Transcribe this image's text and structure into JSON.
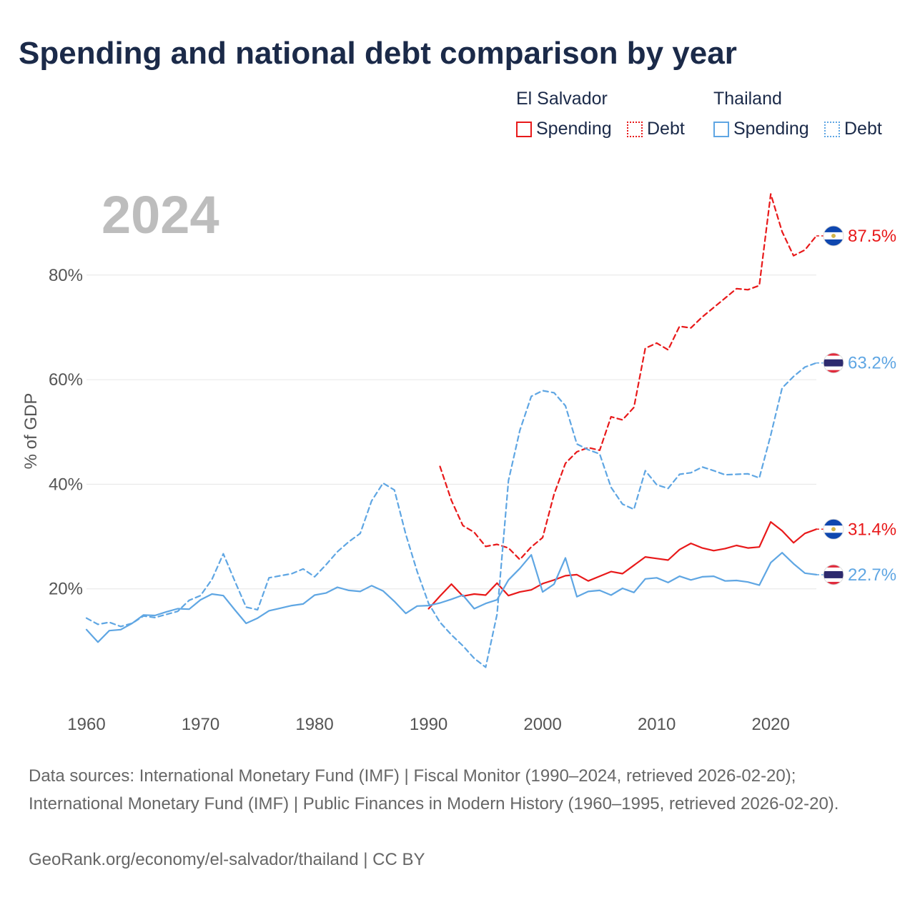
{
  "title": "Spending and national debt comparison by year",
  "year_label": "2024",
  "legend": {
    "el_salvador": {
      "country": "El Salvador",
      "spending": "Spending",
      "debt": "Debt",
      "color": "#e8191a"
    },
    "thailand": {
      "country": "Thailand",
      "spending": "Spending",
      "debt": "Debt",
      "color": "#5fa6e3"
    }
  },
  "footer": {
    "sources": "Data sources: International Monetary Fund (IMF) | Fiscal Monitor (1990–2024, retrieved 2026-02-20); International Monetary Fund (IMF) | Public Finances in Modern History (1960–1995, retrieved 2026-02-20).",
    "credit": "GeoRank.org/economy/el-salvador/thailand | CC BY"
  },
  "chart_data": {
    "type": "line",
    "title": "Spending and national debt comparison by year",
    "xlabel": "",
    "ylabel": "% of GDP",
    "xlim": [
      1960,
      2024
    ],
    "ylim": [
      0,
      100
    ],
    "x_ticks": [
      1960,
      1970,
      1980,
      1990,
      2000,
      2010,
      2020
    ],
    "x_tick_labels": [
      "1960",
      "1970",
      "1980",
      "1990",
      "2000",
      "2010",
      "2020"
    ],
    "y_ticks": [
      20,
      40,
      60,
      80
    ],
    "y_tick_labels": [
      "20%",
      "40%",
      "60%",
      "80%"
    ],
    "grid": true,
    "end_labels": {
      "el_salvador_debt": "87.5%",
      "thailand_debt": "63.2%",
      "el_salvador_spending": "31.4%",
      "thailand_spending": "22.7%"
    },
    "series": [
      {
        "name": "El Salvador Spending",
        "country": "el_salvador",
        "kind": "spending",
        "dashed": false,
        "color": "#e8191a",
        "x": [
          1990,
          1991,
          1992,
          1993,
          1994,
          1995,
          1996,
          1997,
          1998,
          1999,
          2000,
          2001,
          2002,
          2003,
          2004,
          2005,
          2006,
          2007,
          2008,
          2009,
          2010,
          2011,
          2012,
          2013,
          2014,
          2015,
          2016,
          2017,
          2018,
          2019,
          2020,
          2021,
          2022,
          2023,
          2024
        ],
        "values": [
          16.2,
          18.6,
          20.9,
          18.6,
          19.0,
          18.8,
          21.1,
          18.7,
          19.4,
          19.8,
          21.0,
          21.7,
          22.5,
          22.7,
          21.5,
          22.4,
          23.3,
          22.9,
          24.5,
          26.1,
          25.8,
          25.5,
          27.5,
          28.7,
          27.8,
          27.3,
          27.7,
          28.3,
          27.8,
          28.0,
          32.8,
          31.1,
          28.8,
          30.6,
          31.4
        ]
      },
      {
        "name": "El Salvador Debt",
        "country": "el_salvador",
        "kind": "debt",
        "dashed": true,
        "color": "#e8191a",
        "x": [
          1991,
          1992,
          1993,
          1994,
          1995,
          1996,
          1997,
          1998,
          1999,
          2000,
          2001,
          2002,
          2003,
          2004,
          2005,
          2006,
          2007,
          2008,
          2009,
          2010,
          2011,
          2012,
          2013,
          2014,
          2015,
          2016,
          2017,
          2018,
          2019,
          2020,
          2021,
          2022,
          2023,
          2024
        ],
        "values": [
          43.4,
          36.9,
          32.1,
          30.8,
          28.1,
          28.5,
          27.8,
          25.6,
          28.0,
          29.8,
          38.1,
          44.0,
          46.2,
          47.0,
          46.5,
          52.9,
          52.3,
          54.7,
          66.0,
          67.0,
          65.7,
          70.2,
          69.9,
          72.0,
          73.8,
          75.6,
          77.4,
          77.2,
          78.0,
          95.5,
          88.3,
          83.7,
          84.8,
          87.5
        ]
      },
      {
        "name": "Thailand Spending",
        "country": "thailand",
        "kind": "spending",
        "dashed": false,
        "color": "#5fa6e3",
        "x": [
          1960,
          1961,
          1962,
          1963,
          1964,
          1965,
          1966,
          1967,
          1968,
          1969,
          1970,
          1971,
          1972,
          1973,
          1974,
          1975,
          1976,
          1977,
          1978,
          1979,
          1980,
          1981,
          1982,
          1983,
          1984,
          1985,
          1986,
          1987,
          1988,
          1989,
          1990,
          1991,
          1992,
          1993,
          1994,
          1995,
          1996,
          1997,
          1998,
          1999,
          2000,
          2001,
          2002,
          2003,
          2004,
          2005,
          2006,
          2007,
          2008,
          2009,
          2010,
          2011,
          2012,
          2013,
          2014,
          2015,
          2016,
          2017,
          2018,
          2019,
          2020,
          2021,
          2022,
          2023,
          2024
        ],
        "values": [
          12.2,
          9.8,
          12.0,
          12.2,
          13.4,
          15.0,
          14.9,
          15.6,
          16.2,
          16.1,
          17.9,
          19.0,
          18.7,
          16.0,
          13.4,
          14.4,
          15.8,
          16.3,
          16.8,
          17.1,
          18.8,
          19.2,
          20.3,
          19.7,
          19.5,
          20.6,
          19.6,
          17.6,
          15.3,
          16.7,
          16.8,
          17.3,
          18.0,
          18.8,
          16.2,
          17.2,
          17.9,
          21.7,
          23.9,
          26.5,
          19.4,
          20.9,
          25.9,
          18.5,
          19.5,
          19.7,
          18.8,
          20.1,
          19.3,
          21.9,
          22.1,
          21.2,
          22.4,
          21.7,
          22.3,
          22.4,
          21.5,
          21.6,
          21.3,
          20.7,
          25.0,
          26.9,
          24.8,
          23.0,
          22.7
        ]
      },
      {
        "name": "Thailand Debt",
        "country": "thailand",
        "kind": "debt",
        "dashed": true,
        "color": "#5fa6e3",
        "x": [
          1960,
          1961,
          1962,
          1963,
          1964,
          1965,
          1966,
          1967,
          1968,
          1969,
          1970,
          1971,
          1972,
          1973,
          1974,
          1975,
          1976,
          1977,
          1978,
          1979,
          1980,
          1981,
          1982,
          1983,
          1984,
          1985,
          1986,
          1987,
          1988,
          1989,
          1990,
          1991,
          1992,
          1993,
          1994,
          1995,
          1996,
          1997,
          1998,
          1999,
          2000,
          2001,
          2002,
          2003,
          2004,
          2005,
          2006,
          2007,
          2008,
          2009,
          2010,
          2011,
          2012,
          2013,
          2014,
          2015,
          2016,
          2017,
          2018,
          2019,
          2020,
          2021,
          2022,
          2023,
          2024
        ],
        "values": [
          14.4,
          13.2,
          13.6,
          12.8,
          13.4,
          14.8,
          14.5,
          15.1,
          15.7,
          17.8,
          18.7,
          21.8,
          26.7,
          21.5,
          16.5,
          16.0,
          22.1,
          22.5,
          22.9,
          23.8,
          22.3,
          24.6,
          27.1,
          29.0,
          30.6,
          36.8,
          40.2,
          38.9,
          30.4,
          23.3,
          17.2,
          13.6,
          11.2,
          9.1,
          6.7,
          5.0,
          15.1,
          40.7,
          50.3,
          56.8,
          57.9,
          57.5,
          55.0,
          47.7,
          46.6,
          45.8,
          39.4,
          36.2,
          35.2,
          42.6,
          39.9,
          39.2,
          41.9,
          42.2,
          43.3,
          42.6,
          41.8,
          41.9,
          42.0,
          41.2,
          49.4,
          58.4,
          60.6,
          62.4,
          63.2
        ]
      }
    ]
  }
}
